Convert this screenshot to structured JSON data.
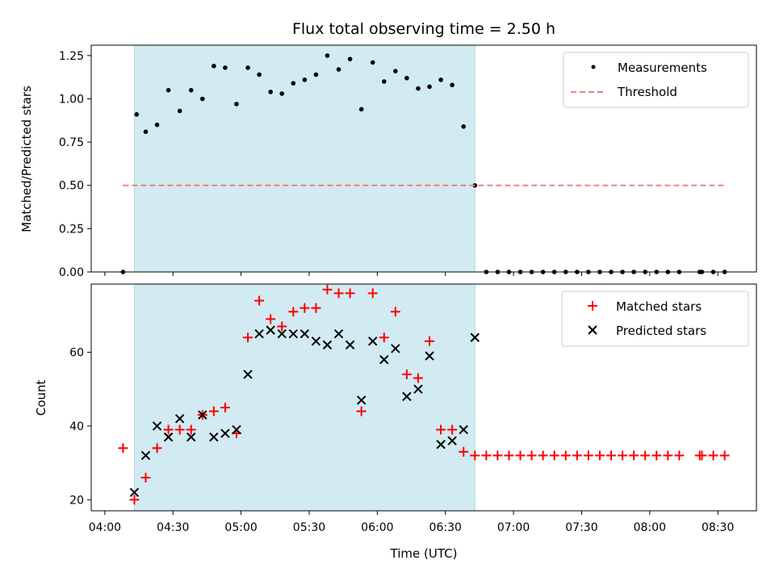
{
  "chart_data": {
    "title": "Flux total observing time = 2.50 h",
    "xlabel": "Time (UTC)",
    "x_ticks": [
      "04:00",
      "04:30",
      "05:00",
      "05:30",
      "06:00",
      "06:30",
      "07:00",
      "07:30",
      "08:00",
      "08:30"
    ],
    "x_range": [
      "03:54",
      "08:47"
    ],
    "shaded_span": [
      "04:13",
      "06:43"
    ],
    "shade_color": "#add8e6",
    "panels": [
      {
        "type": "scatter",
        "ylabel": "Matched/Predicted stars",
        "ylim": [
          0,
          1.31
        ],
        "y_ticks": [
          "0.00",
          "0.25",
          "0.50",
          "0.75",
          "1.00",
          "1.25"
        ],
        "legend_position": "top-right",
        "series": [
          {
            "name": "Measurements",
            "marker": "dot",
            "color": "#000000",
            "points": [
              [
                "04:08",
                0.0
              ],
              [
                "04:14",
                0.91
              ],
              [
                "04:18",
                0.81
              ],
              [
                "04:23",
                0.85
              ],
              [
                "04:28",
                1.05
              ],
              [
                "04:33",
                0.93
              ],
              [
                "04:38",
                1.05
              ],
              [
                "04:43",
                1.0
              ],
              [
                "04:48",
                1.19
              ],
              [
                "04:53",
                1.18
              ],
              [
                "04:58",
                0.97
              ],
              [
                "05:03",
                1.18
              ],
              [
                "05:08",
                1.14
              ],
              [
                "05:13",
                1.04
              ],
              [
                "05:18",
                1.03
              ],
              [
                "05:23",
                1.09
              ],
              [
                "05:28",
                1.11
              ],
              [
                "05:33",
                1.14
              ],
              [
                "05:38",
                1.25
              ],
              [
                "05:43",
                1.17
              ],
              [
                "05:48",
                1.23
              ],
              [
                "05:53",
                0.94
              ],
              [
                "05:58",
                1.21
              ],
              [
                "06:03",
                1.1
              ],
              [
                "06:08",
                1.16
              ],
              [
                "06:13",
                1.12
              ],
              [
                "06:18",
                1.06
              ],
              [
                "06:23",
                1.07
              ],
              [
                "06:28",
                1.11
              ],
              [
                "06:33",
                1.08
              ],
              [
                "06:38",
                0.84
              ],
              [
                "06:43",
                0.5
              ],
              [
                "06:48",
                0.0
              ],
              [
                "06:53",
                0.0
              ],
              [
                "06:58",
                0.0
              ],
              [
                "07:03",
                0.0
              ],
              [
                "07:08",
                0.0
              ],
              [
                "07:13",
                0.0
              ],
              [
                "07:18",
                0.0
              ],
              [
                "07:23",
                0.0
              ],
              [
                "07:28",
                0.0
              ],
              [
                "07:33",
                0.0
              ],
              [
                "07:38",
                0.0
              ],
              [
                "07:43",
                0.0
              ],
              [
                "07:48",
                0.0
              ],
              [
                "07:53",
                0.0
              ],
              [
                "07:58",
                0.0
              ],
              [
                "08:03",
                0.0
              ],
              [
                "08:08",
                0.0
              ],
              [
                "08:13",
                0.0
              ],
              [
                "08:22",
                0.0
              ],
              [
                "08:23",
                0.0
              ],
              [
                "08:28",
                0.0
              ],
              [
                "08:33",
                0.0
              ]
            ]
          },
          {
            "name": "Threshold",
            "marker": "dashed-line",
            "color": "#f08080",
            "points": [
              [
                "04:08",
                0.5
              ],
              [
                "08:33",
                0.5
              ]
            ]
          }
        ]
      },
      {
        "type": "scatter",
        "ylabel": "Count",
        "ylim": [
          17,
          78.5
        ],
        "y_ticks": [
          "20",
          "40",
          "60"
        ],
        "legend_position": "top-right",
        "series": [
          {
            "name": "Matched stars",
            "marker": "plus",
            "color": "#ff0000",
            "points": [
              [
                "04:08",
                34
              ],
              [
                "04:13",
                20
              ],
              [
                "04:18",
                26
              ],
              [
                "04:23",
                34
              ],
              [
                "04:28",
                39
              ],
              [
                "04:33",
                39
              ],
              [
                "04:38",
                39
              ],
              [
                "04:43",
                43
              ],
              [
                "04:48",
                44
              ],
              [
                "04:53",
                45
              ],
              [
                "04:58",
                38
              ],
              [
                "05:03",
                64
              ],
              [
                "05:08",
                74
              ],
              [
                "05:13",
                69
              ],
              [
                "05:18",
                67
              ],
              [
                "05:23",
                71
              ],
              [
                "05:28",
                72
              ],
              [
                "05:33",
                72
              ],
              [
                "05:38",
                77
              ],
              [
                "05:43",
                76
              ],
              [
                "05:48",
                76
              ],
              [
                "05:53",
                44
              ],
              [
                "05:58",
                76
              ],
              [
                "06:03",
                64
              ],
              [
                "06:08",
                71
              ],
              [
                "06:13",
                54
              ],
              [
                "06:18",
                53
              ],
              [
                "06:23",
                63
              ],
              [
                "06:28",
                39
              ],
              [
                "06:33",
                39
              ],
              [
                "06:38",
                33
              ],
              [
                "06:43",
                32
              ],
              [
                "06:48",
                32
              ],
              [
                "06:53",
                32
              ],
              [
                "06:58",
                32
              ],
              [
                "07:03",
                32
              ],
              [
                "07:08",
                32
              ],
              [
                "07:13",
                32
              ],
              [
                "07:18",
                32
              ],
              [
                "07:23",
                32
              ],
              [
                "07:28",
                32
              ],
              [
                "07:33",
                32
              ],
              [
                "07:38",
                32
              ],
              [
                "07:43",
                32
              ],
              [
                "07:48",
                32
              ],
              [
                "07:53",
                32
              ],
              [
                "07:58",
                32
              ],
              [
                "08:03",
                32
              ],
              [
                "08:08",
                32
              ],
              [
                "08:13",
                32
              ],
              [
                "08:22",
                32
              ],
              [
                "08:23",
                32
              ],
              [
                "08:28",
                32
              ],
              [
                "08:33",
                32
              ]
            ]
          },
          {
            "name": "Predicted stars",
            "marker": "x",
            "color": "#000000",
            "points": [
              [
                "04:13",
                22
              ],
              [
                "04:18",
                32
              ],
              [
                "04:23",
                40
              ],
              [
                "04:28",
                37
              ],
              [
                "04:33",
                42
              ],
              [
                "04:38",
                37
              ],
              [
                "04:43",
                43
              ],
              [
                "04:48",
                37
              ],
              [
                "04:53",
                38
              ],
              [
                "04:58",
                39
              ],
              [
                "05:03",
                54
              ],
              [
                "05:08",
                65
              ],
              [
                "05:13",
                66
              ],
              [
                "05:18",
                65
              ],
              [
                "05:23",
                65
              ],
              [
                "05:28",
                65
              ],
              [
                "05:33",
                63
              ],
              [
                "05:38",
                62
              ],
              [
                "05:43",
                65
              ],
              [
                "05:48",
                62
              ],
              [
                "05:53",
                47
              ],
              [
                "05:58",
                63
              ],
              [
                "06:03",
                58
              ],
              [
                "06:08",
                61
              ],
              [
                "06:13",
                48
              ],
              [
                "06:18",
                50
              ],
              [
                "06:23",
                59
              ],
              [
                "06:28",
                35
              ],
              [
                "06:33",
                36
              ],
              [
                "06:38",
                39
              ],
              [
                "06:43",
                64
              ]
            ]
          }
        ]
      }
    ]
  }
}
